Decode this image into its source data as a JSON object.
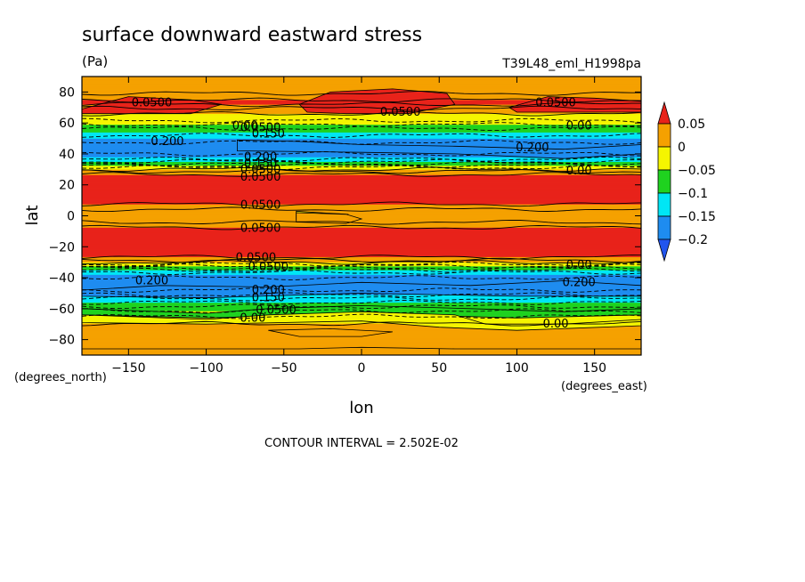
{
  "chart_data": {
    "type": "contour",
    "title": "surface downward eastward stress",
    "units": "(Pa)",
    "dataset": "T39L48_eml_H1998pa",
    "xlabel": "lon",
    "ylabel": "lat",
    "x_units": "(degrees_east)",
    "y_units": "(degrees_north)",
    "xlim": [
      -180,
      180
    ],
    "ylim": [
      -90,
      90
    ],
    "x_ticks": [
      -150,
      -100,
      -50,
      0,
      50,
      100,
      150
    ],
    "y_ticks": [
      -80,
      -60,
      -40,
      -20,
      0,
      20,
      40,
      60,
      80
    ],
    "x_tick_labels": [
      "−150",
      "−100",
      "−50",
      "0",
      "50",
      "100",
      "150"
    ],
    "y_tick_labels": [
      "−80",
      "−60",
      "−40",
      "−20",
      "0",
      "20",
      "40",
      "60",
      "80"
    ],
    "contour_interval_text": "CONTOUR INTERVAL = 2.502E-02",
    "colorbar": {
      "levels": [
        0.05,
        0,
        -0.05,
        -0.1,
        -0.15,
        -0.2
      ],
      "labels": [
        "0.05",
        "0",
        "−0.05",
        "−0.1",
        "−0.15",
        "−0.2"
      ],
      "colors": [
        "#e8231a",
        "#f5a100",
        "#f5f500",
        "#1fd21f",
        "#00e6f5",
        "#1e8cf0",
        "#2255ee"
      ]
    },
    "zonal_profile": {
      "lat": [
        -90,
        -83,
        -75,
        -68,
        -62,
        -58,
        -54,
        -50,
        -46,
        -42,
        -38,
        -34,
        -31,
        -28,
        -24,
        -18,
        -10,
        -5,
        0,
        5,
        10,
        18,
        24,
        28,
        31,
        34,
        38,
        42,
        46,
        50,
        54,
        58,
        62,
        68,
        73,
        80,
        86,
        90
      ],
      "stress_pa": [
        0.01,
        0.01,
        0.015,
        -0.005,
        -0.045,
        -0.08,
        -0.12,
        -0.16,
        -0.19,
        -0.2,
        -0.15,
        -0.08,
        -0.02,
        0.04,
        0.07,
        0.08,
        0.07,
        0.03,
        0.0,
        0.03,
        0.07,
        0.085,
        0.07,
        0.04,
        -0.02,
        -0.08,
        -0.15,
        -0.2,
        -0.19,
        -0.15,
        -0.1,
        -0.06,
        -0.02,
        0.01,
        0.06,
        0.02,
        0.01,
        0.01
      ]
    },
    "contour_labels": [
      {
        "text": "0.0500",
        "lon": -135,
        "lat": 73
      },
      {
        "text": "0.0500",
        "lon": 25,
        "lat": 67
      },
      {
        "text": "0.0500",
        "lon": 125,
        "lat": 73
      },
      {
        "text": "0.00",
        "lon": -75,
        "lat": 58
      },
      {
        "text": "0.0500",
        "lon": -65,
        "lat": 57
      },
      {
        "text": "0.150",
        "lon": -60,
        "lat": 53
      },
      {
        "text": "0.200",
        "lon": -125,
        "lat": 48
      },
      {
        "text": "0.00",
        "lon": 140,
        "lat": 58
      },
      {
        "text": "0.200",
        "lon": 110,
        "lat": 44
      },
      {
        "text": "0.200",
        "lon": -65,
        "lat": 38
      },
      {
        "text": "0.150",
        "lon": -65,
        "lat": 34
      },
      {
        "text": "0.0500",
        "lon": -65,
        "lat": 30
      },
      {
        "text": "0.0500",
        "lon": -65,
        "lat": 25
      },
      {
        "text": "0.00",
        "lon": 140,
        "lat": 29
      },
      {
        "text": "0.0500",
        "lon": -65,
        "lat": 7
      },
      {
        "text": "0.0500",
        "lon": -65,
        "lat": -8
      },
      {
        "text": "0.0500",
        "lon": -68,
        "lat": -27
      },
      {
        "text": "0.0500",
        "lon": -60,
        "lat": -33
      },
      {
        "text": "0.00",
        "lon": 140,
        "lat": -32
      },
      {
        "text": "0.200",
        "lon": -135,
        "lat": -42
      },
      {
        "text": "0.200",
        "lon": 140,
        "lat": -43
      },
      {
        "text": "0.200",
        "lon": -60,
        "lat": -48
      },
      {
        "text": "0.150",
        "lon": -60,
        "lat": -53
      },
      {
        "text": "0.0500",
        "lon": -55,
        "lat": -61
      },
      {
        "text": "0.00",
        "lon": -70,
        "lat": -66
      },
      {
        "text": "0.00",
        "lon": 125,
        "lat": -70
      }
    ]
  }
}
